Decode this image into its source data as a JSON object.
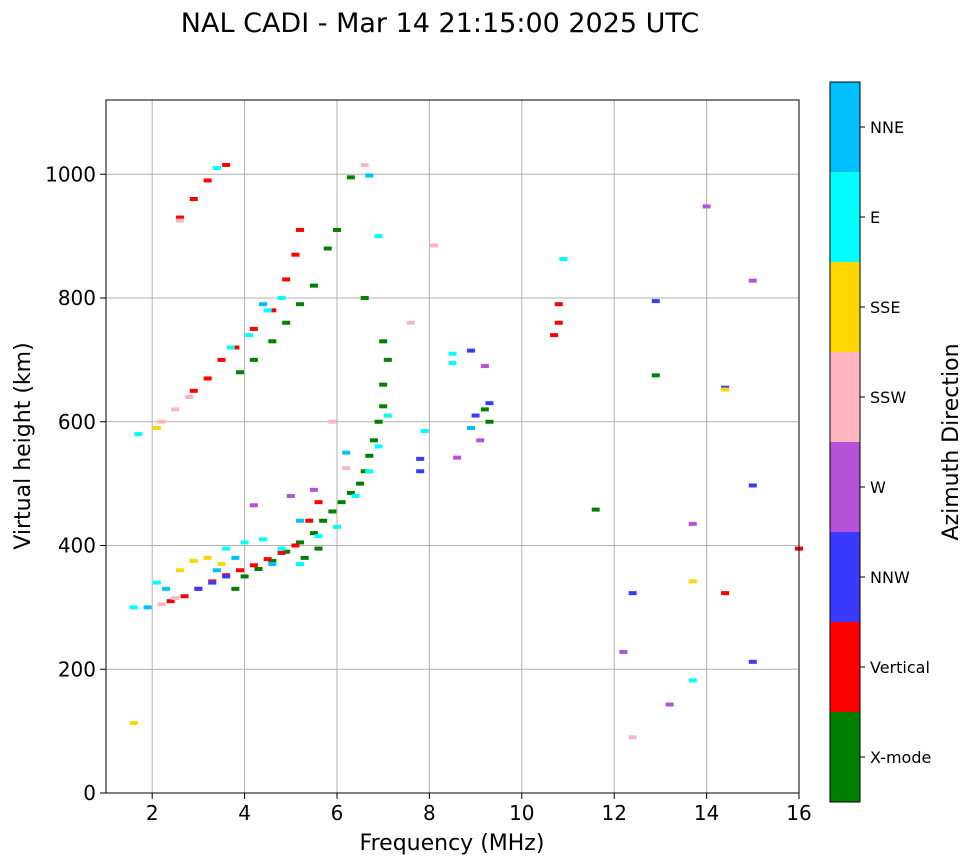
{
  "chart_data": {
    "type": "scatter",
    "title": "NAL CADI - Mar 14 21:15:00 2025 UTC",
    "xlabel": "Frequency (MHz)",
    "ylabel": "Virtual height (km)",
    "xlim": [
      1,
      16
    ],
    "ylim": [
      0,
      1120
    ],
    "xticks": [
      2,
      4,
      6,
      8,
      10,
      12,
      14,
      16
    ],
    "yticks": [
      0,
      200,
      400,
      600,
      800,
      1000
    ],
    "grid": true,
    "colorbar": {
      "label": "Azimuth Direction",
      "categories": [
        {
          "name": "X-mode",
          "color": "#008000"
        },
        {
          "name": "Vertical",
          "color": "#ff0000"
        },
        {
          "name": "NNW",
          "color": "#3a3aff"
        },
        {
          "name": "W",
          "color": "#b552d8"
        },
        {
          "name": "SSW",
          "color": "#ffb6c1"
        },
        {
          "name": "SSE",
          "color": "#ffd700"
        },
        {
          "name": "E",
          "color": "#00ffff"
        },
        {
          "name": "NNE",
          "color": "#00bfff"
        }
      ]
    },
    "series": [
      {
        "name": "X-mode",
        "points": [
          [
            3.8,
            330
          ],
          [
            4.0,
            350
          ],
          [
            4.3,
            362
          ],
          [
            4.6,
            375
          ],
          [
            4.9,
            390
          ],
          [
            5.2,
            405
          ],
          [
            5.5,
            420
          ],
          [
            5.7,
            440
          ],
          [
            5.9,
            455
          ],
          [
            6.1,
            470
          ],
          [
            6.3,
            485
          ],
          [
            6.5,
            500
          ],
          [
            6.6,
            520
          ],
          [
            6.7,
            545
          ],
          [
            6.8,
            570
          ],
          [
            6.9,
            600
          ],
          [
            7.0,
            625
          ],
          [
            7.0,
            660
          ],
          [
            7.1,
            700
          ],
          [
            7.0,
            730
          ],
          [
            3.9,
            680
          ],
          [
            4.2,
            700
          ],
          [
            4.6,
            730
          ],
          [
            4.9,
            760
          ],
          [
            5.2,
            790
          ],
          [
            5.5,
            820
          ],
          [
            5.8,
            880
          ],
          [
            6.0,
            910
          ],
          [
            6.6,
            800
          ],
          [
            9.2,
            620
          ],
          [
            9.3,
            600
          ],
          [
            11.6,
            458
          ],
          [
            12.9,
            675
          ],
          [
            6.3,
            995
          ],
          [
            5.3,
            380
          ],
          [
            5.6,
            395
          ]
        ]
      },
      {
        "name": "Vertical",
        "points": [
          [
            2.4,
            310
          ],
          [
            2.7,
            318
          ],
          [
            3.0,
            330
          ],
          [
            3.3,
            342
          ],
          [
            3.6,
            352
          ],
          [
            3.9,
            360
          ],
          [
            4.2,
            368
          ],
          [
            4.5,
            378
          ],
          [
            4.8,
            388
          ],
          [
            5.1,
            400
          ],
          [
            5.4,
            440
          ],
          [
            5.6,
            470
          ],
          [
            2.9,
            650
          ],
          [
            3.2,
            670
          ],
          [
            3.5,
            700
          ],
          [
            3.8,
            720
          ],
          [
            4.2,
            750
          ],
          [
            4.6,
            780
          ],
          [
            4.9,
            830
          ],
          [
            5.1,
            870
          ],
          [
            5.2,
            910
          ],
          [
            2.6,
            930
          ],
          [
            2.9,
            960
          ],
          [
            3.2,
            990
          ],
          [
            3.6,
            1015
          ],
          [
            10.8,
            790
          ],
          [
            10.8,
            760
          ],
          [
            10.7,
            740
          ],
          [
            14.4,
            323
          ],
          [
            16.0,
            395
          ]
        ]
      },
      {
        "name": "NNW",
        "points": [
          [
            3.0,
            330
          ],
          [
            3.3,
            340
          ],
          [
            3.6,
            350
          ],
          [
            7.8,
            520
          ],
          [
            7.8,
            540
          ],
          [
            9.0,
            610
          ],
          [
            9.3,
            630
          ],
          [
            8.9,
            715
          ],
          [
            12.4,
            323
          ],
          [
            12.9,
            795
          ],
          [
            14.4,
            655
          ],
          [
            15.0,
            497
          ],
          [
            15.0,
            212
          ]
        ]
      },
      {
        "name": "W",
        "points": [
          [
            4.2,
            465
          ],
          [
            5.0,
            480
          ],
          [
            5.5,
            490
          ],
          [
            8.6,
            542
          ],
          [
            9.2,
            690
          ],
          [
            9.1,
            570
          ],
          [
            12.2,
            228
          ],
          [
            13.2,
            143
          ],
          [
            13.7,
            435
          ],
          [
            14.0,
            948
          ],
          [
            15.0,
            828
          ]
        ]
      },
      {
        "name": "SSW",
        "points": [
          [
            2.2,
            600
          ],
          [
            2.5,
            620
          ],
          [
            2.8,
            640
          ],
          [
            2.2,
            305
          ],
          [
            2.5,
            315
          ],
          [
            5.9,
            600
          ],
          [
            6.2,
            525
          ],
          [
            7.6,
            760
          ],
          [
            8.1,
            885
          ],
          [
            12.4,
            90
          ],
          [
            6.6,
            1015
          ],
          [
            2.6,
            925
          ]
        ]
      },
      {
        "name": "SSE",
        "points": [
          [
            2.6,
            360
          ],
          [
            2.9,
            375
          ],
          [
            3.2,
            380
          ],
          [
            3.5,
            370
          ],
          [
            2.1,
            590
          ],
          [
            13.7,
            342
          ],
          [
            14.4,
            652
          ],
          [
            1.6,
            113
          ]
        ]
      },
      {
        "name": "E",
        "points": [
          [
            3.6,
            395
          ],
          [
            4.0,
            405
          ],
          [
            4.4,
            410
          ],
          [
            4.8,
            395
          ],
          [
            5.2,
            370
          ],
          [
            5.6,
            415
          ],
          [
            6.0,
            430
          ],
          [
            6.4,
            480
          ],
          [
            6.7,
            520
          ],
          [
            6.9,
            560
          ],
          [
            7.1,
            610
          ],
          [
            3.7,
            720
          ],
          [
            4.1,
            740
          ],
          [
            4.5,
            780
          ],
          [
            4.8,
            800
          ],
          [
            1.6,
            300
          ],
          [
            2.1,
            340
          ],
          [
            1.7,
            580
          ],
          [
            8.5,
            710
          ],
          [
            8.5,
            695
          ],
          [
            7.9,
            585
          ],
          [
            10.9,
            863
          ],
          [
            13.7,
            182
          ],
          [
            6.9,
            900
          ],
          [
            3.4,
            1010
          ]
        ]
      },
      {
        "name": "NNE",
        "points": [
          [
            1.9,
            300
          ],
          [
            2.3,
            330
          ],
          [
            3.4,
            360
          ],
          [
            3.8,
            380
          ],
          [
            4.6,
            370
          ],
          [
            5.2,
            440
          ],
          [
            6.2,
            550
          ],
          [
            8.9,
            590
          ],
          [
            6.7,
            998
          ],
          [
            4.4,
            790
          ]
        ]
      }
    ]
  }
}
